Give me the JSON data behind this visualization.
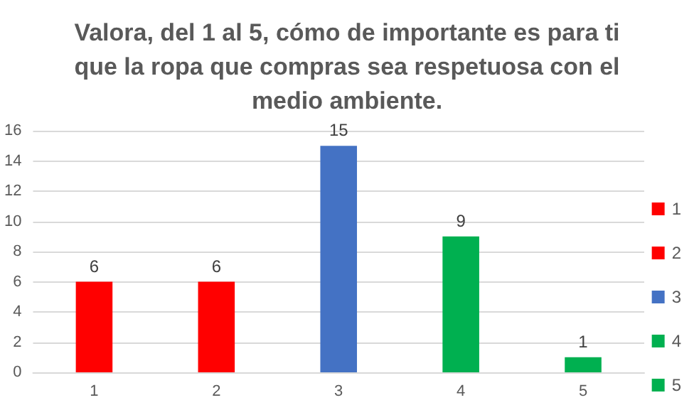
{
  "chart_data": {
    "type": "bar",
    "title": "Valora, del 1 al 5, cómo de importante es para ti\nque la ropa que compras sea respetuosa con el\nmedio ambiente.",
    "categories": [
      "1",
      "2",
      "3",
      "4",
      "5"
    ],
    "series": [
      {
        "name": "1",
        "color": "#ff0000",
        "values": [
          6,
          null,
          null,
          null,
          null
        ]
      },
      {
        "name": "2",
        "color": "#ff0000",
        "values": [
          null,
          6,
          null,
          null,
          null
        ]
      },
      {
        "name": "3",
        "color": "#4472c4",
        "values": [
          null,
          null,
          15,
          null,
          null
        ]
      },
      {
        "name": "4",
        "color": "#00b050",
        "values": [
          null,
          null,
          null,
          9,
          null
        ]
      },
      {
        "name": "5",
        "color": "#00b050",
        "values": [
          null,
          null,
          null,
          null,
          1
        ]
      }
    ],
    "ylim": [
      0,
      16
    ],
    "yticks": [
      0,
      2,
      4,
      6,
      8,
      10,
      12,
      14,
      16
    ],
    "grid": "y",
    "legend": "right",
    "data_labels": true
  }
}
